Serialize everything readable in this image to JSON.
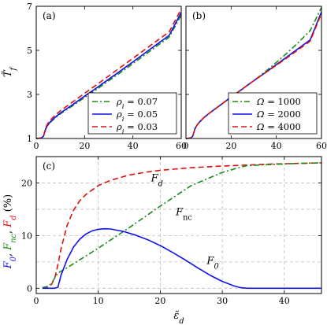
{
  "chart_data": [
    {
      "type": "line",
      "panel_label": "(a)",
      "ylabel": "T̃f",
      "xlim": [
        0,
        60
      ],
      "ylim": [
        1,
        7
      ],
      "xticks": [
        0,
        20,
        40,
        60
      ],
      "yticks": [
        1,
        3,
        5,
        7
      ],
      "grid": false,
      "legend_position": "bottom-right",
      "series": [
        {
          "name": "ρi = 0.07",
          "label": "ρi = 0.07",
          "color": "#1a8a1a",
          "dash": "dashdot",
          "x": [
            0,
            2,
            3,
            4,
            5,
            6,
            8,
            10,
            15,
            20,
            25,
            30,
            35,
            40,
            45,
            50,
            55,
            60
          ],
          "y": [
            1.0,
            1.02,
            1.1,
            1.45,
            1.62,
            1.75,
            1.95,
            2.12,
            2.48,
            2.86,
            3.23,
            3.62,
            4.0,
            4.4,
            4.8,
            5.2,
            5.6,
            6.6
          ]
        },
        {
          "name": "ρi = 0.05",
          "label": "ρi = 0.05",
          "color": "#1010ee",
          "dash": "solid",
          "x": [
            0,
            2,
            3,
            4,
            5,
            6,
            8,
            10,
            15,
            20,
            25,
            30,
            35,
            40,
            45,
            50,
            55,
            60
          ],
          "y": [
            1.0,
            1.02,
            1.1,
            1.47,
            1.65,
            1.78,
            1.98,
            2.16,
            2.53,
            2.92,
            3.3,
            3.69,
            4.08,
            4.48,
            4.88,
            5.28,
            5.68,
            6.72
          ]
        },
        {
          "name": "ρi = 0.03",
          "label": "ρi = 0.03",
          "color": "#e01010",
          "dash": "dashed",
          "x": [
            0,
            2,
            3,
            4,
            5,
            6,
            8,
            10,
            15,
            20,
            25,
            30,
            35,
            40,
            45,
            50,
            55,
            60
          ],
          "y": [
            1.0,
            1.02,
            1.12,
            1.52,
            1.72,
            1.86,
            2.07,
            2.26,
            2.65,
            3.05,
            3.44,
            3.84,
            4.24,
            4.64,
            5.04,
            5.44,
            5.84,
            6.88
          ]
        }
      ]
    },
    {
      "type": "line",
      "panel_label": "(b)",
      "xlim": [
        0,
        60
      ],
      "ylim": [
        1,
        7
      ],
      "xticks": [
        0,
        20,
        40,
        60
      ],
      "yticks": [
        1,
        3,
        5,
        7
      ],
      "grid": false,
      "legend_position": "bottom-right",
      "series": [
        {
          "name": "Ω = 1000",
          "label": "Ω = 1000",
          "color": "#1a8a1a",
          "dash": "dashdot",
          "x": [
            0,
            2,
            3,
            4,
            5,
            6,
            8,
            10,
            15,
            20,
            25,
            30,
            35,
            40,
            45,
            50,
            55,
            60
          ],
          "y": [
            1.0,
            1.02,
            1.1,
            1.45,
            1.62,
            1.75,
            1.95,
            2.12,
            2.5,
            2.88,
            3.25,
            3.62,
            4.02,
            4.45,
            4.9,
            5.38,
            5.9,
            6.95
          ]
        },
        {
          "name": "Ω = 2000",
          "label": "Ω = 2000",
          "color": "#1010ee",
          "dash": "solid",
          "x": [
            0,
            2,
            3,
            4,
            5,
            6,
            8,
            10,
            15,
            20,
            25,
            30,
            35,
            40,
            45,
            50,
            55,
            60
          ],
          "y": [
            1.0,
            1.02,
            1.1,
            1.45,
            1.62,
            1.75,
            1.95,
            2.12,
            2.5,
            2.88,
            3.25,
            3.62,
            3.98,
            4.35,
            4.72,
            5.1,
            5.48,
            6.75
          ]
        },
        {
          "name": "Ω = 4000",
          "label": "Ω = 4000",
          "color": "#e01010",
          "dash": "dashed",
          "x": [
            0,
            2,
            3,
            4,
            5,
            6,
            8,
            10,
            15,
            20,
            25,
            30,
            35,
            40,
            45,
            50,
            55,
            60
          ],
          "y": [
            1.0,
            1.02,
            1.1,
            1.45,
            1.62,
            1.75,
            1.95,
            2.12,
            2.5,
            2.88,
            3.25,
            3.62,
            3.97,
            4.32,
            4.68,
            5.05,
            5.42,
            6.68
          ]
        }
      ]
    },
    {
      "type": "line",
      "panel_label": "(c)",
      "xlabel": "ε̃d",
      "ylabel_parts": [
        {
          "text": "F0",
          "color": "#1010ee"
        },
        {
          "text": ", ",
          "color": "#000000"
        },
        {
          "text": "Fnc",
          "color": "#1a8a1a"
        },
        {
          "text": ", ",
          "color": "#000000"
        },
        {
          "text": "Fd",
          "color": "#e01010"
        },
        {
          "text": " (%)",
          "color": "#000000"
        }
      ],
      "xlim": [
        0,
        46
      ],
      "ylim": [
        -1,
        25
      ],
      "xticks": [
        0,
        10,
        20,
        30,
        40
      ],
      "yticks": [
        0,
        10,
        20
      ],
      "grid": true,
      "series": [
        {
          "name": "Fd",
          "label": "Fd",
          "color": "#e01010",
          "dash": "dashed",
          "x": [
            1,
            2,
            2.5,
            3,
            3.5,
            4,
            5,
            6,
            7,
            8,
            10,
            12,
            15,
            18,
            20,
            25,
            30,
            34,
            38,
            42,
            46
          ],
          "y": [
            0.1,
            0.3,
            0.8,
            2.0,
            4.5,
            7.5,
            12.0,
            14.8,
            16.6,
            17.8,
            19.5,
            20.5,
            21.5,
            22.1,
            22.4,
            22.9,
            23.2,
            23.4,
            23.6,
            23.7,
            23.8
          ]
        },
        {
          "name": "Fnc",
          "label": "Fnc",
          "color": "#1a8a1a",
          "dash": "dashdot",
          "x": [
            1,
            2,
            2.5,
            3,
            3.5,
            5,
            10,
            15,
            20,
            25,
            30,
            33,
            34,
            38,
            42,
            46
          ],
          "y": [
            0.1,
            0.4,
            1.0,
            2.0,
            2.9,
            3.9,
            7.6,
            11.5,
            15.6,
            19.5,
            22.0,
            23.0,
            23.3,
            23.5,
            23.7,
            23.8
          ]
        },
        {
          "name": "F0",
          "label": "F0",
          "color": "#1010ee",
          "dash": "solid",
          "x": [
            1,
            2,
            3,
            3.5,
            4,
            5,
            6,
            7,
            8,
            9,
            10,
            11,
            12,
            14,
            16,
            18,
            20,
            22,
            24,
            26,
            28,
            30,
            32,
            33,
            34,
            36,
            40,
            46
          ],
          "y": [
            0.0,
            0.0,
            0.0,
            0.2,
            2.5,
            5.5,
            7.8,
            9.3,
            10.3,
            10.9,
            11.2,
            11.3,
            11.25,
            10.8,
            10.1,
            9.2,
            8.1,
            6.8,
            5.4,
            3.9,
            2.5,
            1.3,
            0.4,
            0.1,
            0.0,
            0.0,
            0.0,
            0.0
          ]
        }
      ],
      "annotations": [
        {
          "text": "Fd",
          "x": 18.5,
          "y": 20.3
        },
        {
          "text": "Fnc",
          "x": 22.5,
          "y": 13.9
        },
        {
          "text": "F0",
          "x": 27.5,
          "y": 4.6
        }
      ]
    }
  ]
}
